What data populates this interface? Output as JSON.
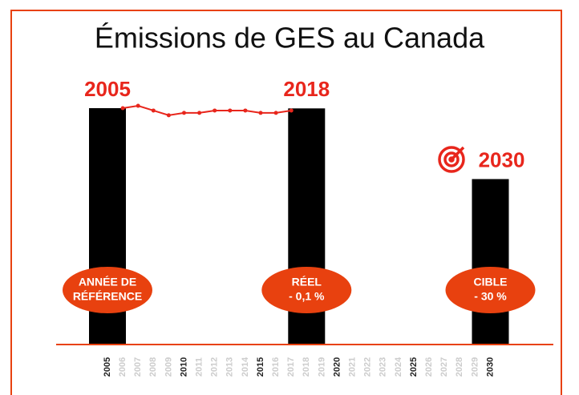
{
  "chart_data": {
    "type": "bar",
    "title": "Émissions de GES au Canada",
    "categories": [
      "2005",
      "2006",
      "2007",
      "2008",
      "2009",
      "2010",
      "2011",
      "2012",
      "2013",
      "2014",
      "2015",
      "2016",
      "2017",
      "2018",
      "2019",
      "2020",
      "2021",
      "2022",
      "2023",
      "2024",
      "2025",
      "2026",
      "2027",
      "2028",
      "2029",
      "2030"
    ],
    "values": [
      100,
      null,
      null,
      null,
      null,
      null,
      null,
      null,
      null,
      null,
      null,
      null,
      null,
      99.9,
      null,
      null,
      null,
      null,
      null,
      null,
      null,
      null,
      null,
      null,
      null,
      70
    ],
    "color": "#000000",
    "trend": {
      "color": "#e8261c",
      "values": [
        null,
        100,
        101,
        99,
        97,
        98,
        98,
        99,
        99,
        99,
        98,
        98,
        99,
        null,
        null,
        null,
        null,
        null,
        null,
        null,
        null,
        null,
        null,
        null,
        null,
        null
      ]
    },
    "highlights": [
      {
        "label": "2005",
        "text": [
          "ANNÉE DE",
          "RÉFÉRENCE"
        ]
      },
      {
        "label": "2018",
        "text": [
          "RÉEL",
          "- 0,1 %"
        ]
      },
      {
        "label": "2030",
        "text": [
          "CIBLE",
          "-  30 %"
        ]
      }
    ],
    "accent_color": "#e8410f"
  }
}
